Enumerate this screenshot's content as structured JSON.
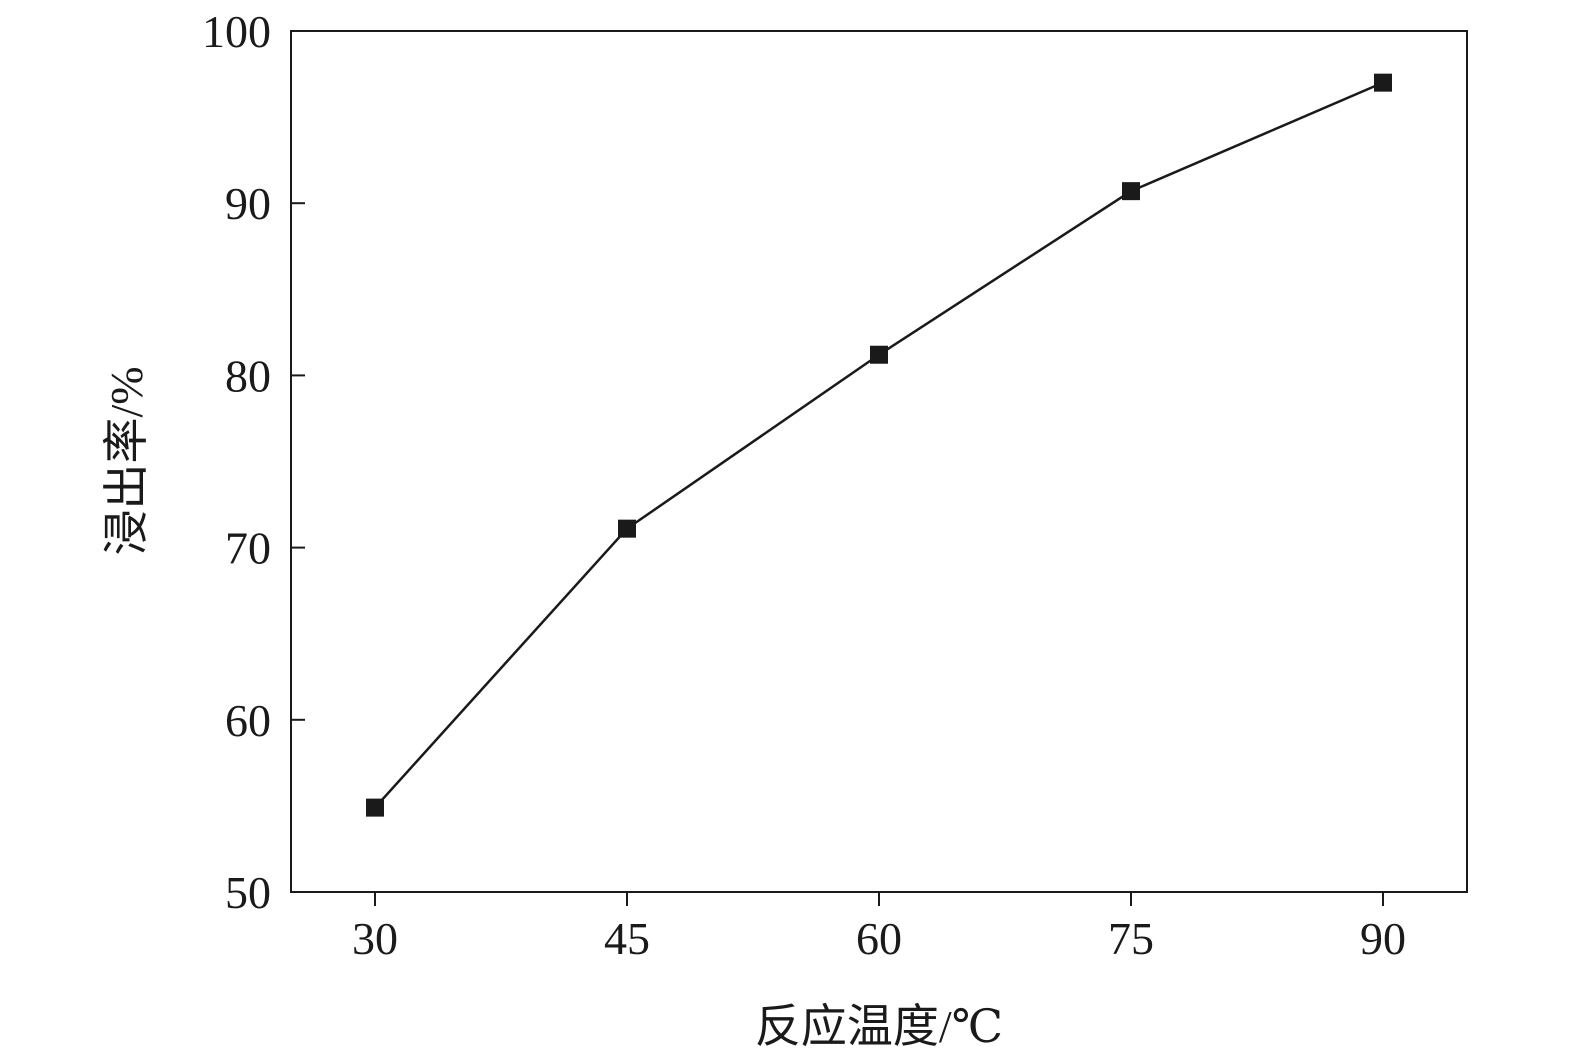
{
  "chart_data": {
    "type": "line",
    "title": "",
    "xlabel": "反应温度/℃",
    "ylabel": "浸出率/%",
    "x": [
      30,
      45,
      60,
      75,
      90
    ],
    "series": [
      {
        "values": [
          54.9,
          71.1,
          81.2,
          90.7,
          97.0
        ],
        "marker": "square",
        "color": "#1a1a1a"
      }
    ],
    "xlim": [
      25,
      95
    ],
    "ylim": [
      50,
      100
    ],
    "xticks": [
      30,
      45,
      60,
      75,
      90
    ],
    "yticks": [
      50,
      60,
      70,
      80,
      90,
      100
    ],
    "grid": false,
    "legend": "none"
  }
}
